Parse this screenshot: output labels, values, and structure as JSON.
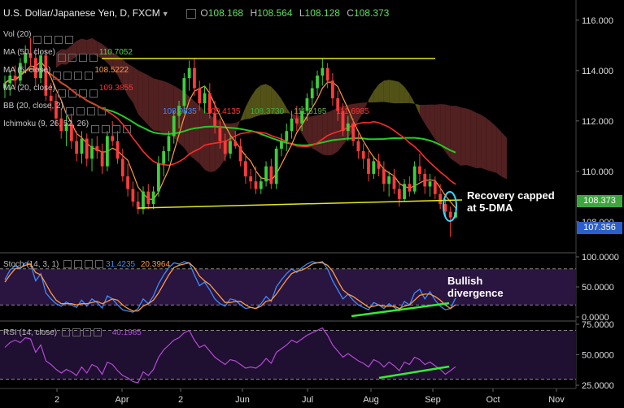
{
  "header": {
    "title": "U.S. Dollar/Japanese Yen, D, FXCM",
    "ohlc": [
      {
        "k": "O",
        "v": "108.168"
      },
      {
        "k": "H",
        "v": "108.564"
      },
      {
        "k": "L",
        "v": "108.128"
      },
      {
        "k": "C",
        "v": "108.373"
      }
    ]
  },
  "indicators": [
    {
      "label": "Vol (20)",
      "value": "",
      "color": "#bbbbbb"
    },
    {
      "label": "MA (50, close)",
      "value": "110.7052",
      "color": "#44dd44"
    },
    {
      "label": "MA (5, close)",
      "value": "108.5222",
      "color": "#ff9a40"
    },
    {
      "label": "MA (20, close)",
      "value": "109.3855",
      "color": "#ff3333"
    },
    {
      "label": "BB (20, close, 2)",
      "value": "",
      "color": "#bbbbbb"
    },
    {
      "label": "Ichimoku (9, 26, 52, 26)",
      "value": "",
      "color": "#bbbbbb"
    }
  ],
  "ichimoku_values": [
    {
      "v": "108.9835",
      "color": "#3a8cff"
    },
    {
      "v": "109.4135",
      "color": "#ff3333"
    },
    {
      "v": "108.3730",
      "color": "#44aa44"
    },
    {
      "v": "111.5195",
      "color": "#66aa44"
    },
    {
      "v": "111.6985",
      "color": "#ff3333"
    }
  ],
  "annotations": {
    "recovery": [
      "Recovery capped",
      "at 5-DMA"
    ],
    "bullish": [
      "Bullish",
      "divergence"
    ]
  },
  "price_badges": {
    "current": "108.373",
    "lower": "107.356"
  },
  "stoch": {
    "label": "Stoch (14, 3, 1)",
    "k": "31.4235",
    "d": "20.3964"
  },
  "rsi": {
    "label": "RSI (14, close)",
    "value": "40.1985"
  },
  "colors": {
    "bull": "#3ccf3c",
    "bear": "#ff3b3b",
    "ma50": "#22cc22",
    "ma20": "#ff2a2a",
    "ma5": "#ff9a40",
    "cloud_bull": "#5b5b1a",
    "cloud_bear": "#5a2424",
    "trendline": "#e6e61e",
    "stoch_k": "#3a8cff",
    "stoch_d": "#ff9a40",
    "rsi": "#b44ad8",
    "highlight": "#3fd8ff",
    "divergence": "#33ee33"
  },
  "chart_data": [
    {
      "type": "candlestick",
      "title": "U.S. Dollar/Japanese Yen, D, FXCM",
      "x_tick_labels": [
        "2",
        "Apr",
        "2",
        "Jun",
        "Jul",
        "Aug",
        "Sep",
        "Oct",
        "Nov"
      ],
      "y_tick_labels": [
        "116.000",
        "114.000",
        "112.000",
        "110.000",
        "108.000"
      ],
      "ylim": [
        106.8,
        116.8
      ],
      "candles": [
        [
          113.3,
          113.8,
          112.9,
          113.5
        ],
        [
          113.5,
          114.0,
          113.0,
          113.8
        ],
        [
          113.8,
          114.2,
          113.3,
          113.6
        ],
        [
          113.6,
          114.5,
          113.4,
          114.3
        ],
        [
          114.3,
          115.0,
          113.9,
          114.7
        ],
        [
          114.7,
          115.3,
          114.2,
          114.5
        ],
        [
          114.5,
          114.9,
          113.4,
          113.7
        ],
        [
          113.7,
          114.8,
          113.5,
          114.6
        ],
        [
          114.6,
          114.8,
          112.8,
          113.0
        ],
        [
          113.0,
          113.5,
          112.4,
          112.8
        ],
        [
          112.8,
          113.1,
          111.8,
          112.1
        ],
        [
          112.1,
          112.5,
          111.3,
          111.6
        ],
        [
          111.6,
          112.2,
          111.0,
          111.9
        ],
        [
          111.9,
          112.3,
          110.9,
          111.2
        ],
        [
          111.2,
          111.6,
          110.4,
          110.7
        ],
        [
          110.7,
          111.6,
          110.3,
          111.3
        ],
        [
          111.3,
          111.5,
          110.2,
          110.5
        ],
        [
          110.5,
          111.3,
          110.0,
          111.0
        ],
        [
          111.0,
          111.4,
          110.5,
          110.8
        ],
        [
          110.8,
          111.1,
          109.9,
          110.2
        ],
        [
          110.2,
          111.6,
          110.0,
          111.4
        ],
        [
          111.4,
          112.0,
          111.0,
          111.2
        ],
        [
          111.2,
          111.6,
          110.3,
          110.5
        ],
        [
          110.5,
          110.9,
          109.6,
          109.8
        ],
        [
          109.8,
          110.3,
          109.0,
          109.3
        ],
        [
          109.3,
          109.6,
          108.6,
          108.8
        ],
        [
          108.8,
          109.2,
          108.3,
          108.5
        ],
        [
          108.5,
          109.4,
          108.3,
          109.2
        ],
        [
          109.2,
          109.5,
          108.5,
          108.7
        ],
        [
          108.7,
          109.4,
          108.5,
          109.2
        ],
        [
          109.2,
          110.6,
          109.0,
          110.3
        ],
        [
          110.3,
          111.0,
          109.8,
          110.8
        ],
        [
          110.8,
          111.6,
          110.4,
          111.4
        ],
        [
          111.4,
          112.4,
          111.1,
          112.2
        ],
        [
          112.2,
          112.8,
          111.7,
          112.6
        ],
        [
          112.6,
          113.9,
          112.3,
          113.7
        ],
        [
          113.7,
          114.4,
          113.2,
          114.1
        ],
        [
          114.1,
          114.5,
          113.0,
          113.3
        ],
        [
          113.3,
          113.6,
          112.4,
          112.7
        ],
        [
          112.7,
          113.4,
          112.3,
          113.1
        ],
        [
          113.1,
          113.5,
          112.1,
          112.3
        ],
        [
          112.3,
          112.8,
          111.5,
          111.8
        ],
        [
          111.8,
          112.1,
          110.9,
          111.2
        ],
        [
          111.2,
          111.5,
          110.4,
          110.7
        ],
        [
          110.7,
          111.4,
          110.5,
          111.2
        ],
        [
          111.2,
          111.6,
          110.9,
          111.0
        ],
        [
          111.0,
          111.3,
          110.2,
          110.4
        ],
        [
          110.4,
          110.7,
          109.5,
          109.8
        ],
        [
          109.8,
          110.1,
          109.3,
          109.6
        ],
        [
          109.6,
          110.2,
          109.1,
          109.3
        ],
        [
          109.3,
          109.8,
          109.1,
          109.6
        ],
        [
          109.6,
          110.4,
          109.4,
          110.2
        ],
        [
          110.2,
          110.5,
          109.3,
          109.5
        ],
        [
          109.5,
          111.0,
          109.3,
          110.9
        ],
        [
          110.9,
          111.5,
          110.6,
          111.2
        ],
        [
          111.2,
          111.9,
          110.8,
          111.6
        ],
        [
          111.6,
          112.4,
          111.3,
          112.1
        ],
        [
          112.1,
          112.6,
          111.6,
          111.9
        ],
        [
          111.9,
          112.6,
          111.6,
          112.4
        ],
        [
          112.4,
          113.1,
          112.0,
          112.9
        ],
        [
          112.9,
          113.6,
          112.6,
          113.3
        ],
        [
          113.3,
          114.0,
          113.0,
          113.8
        ],
        [
          113.8,
          114.5,
          113.4,
          114.1
        ],
        [
          114.1,
          114.3,
          113.3,
          113.6
        ],
        [
          113.6,
          113.9,
          112.6,
          112.9
        ],
        [
          112.9,
          113.2,
          112.0,
          112.4
        ],
        [
          112.4,
          112.7,
          111.4,
          111.6
        ],
        [
          111.6,
          112.2,
          111.2,
          111.9
        ],
        [
          111.9,
          112.1,
          111.0,
          111.2
        ],
        [
          111.2,
          111.5,
          110.5,
          110.8
        ],
        [
          110.8,
          111.1,
          110.1,
          110.5
        ],
        [
          110.5,
          110.8,
          109.6,
          109.9
        ],
        [
          109.9,
          110.6,
          109.7,
          110.4
        ],
        [
          110.4,
          110.7,
          109.8,
          110.1
        ],
        [
          110.1,
          110.4,
          109.2,
          109.5
        ],
        [
          109.5,
          110.0,
          109.0,
          109.8
        ],
        [
          109.8,
          110.1,
          109.1,
          109.3
        ],
        [
          109.3,
          109.6,
          108.6,
          108.9
        ],
        [
          108.9,
          109.7,
          108.8,
          109.5
        ],
        [
          109.5,
          109.8,
          109.0,
          109.2
        ],
        [
          109.2,
          110.4,
          109.1,
          110.2
        ],
        [
          110.2,
          110.7,
          109.6,
          109.9
        ],
        [
          109.9,
          110.1,
          109.1,
          109.4
        ],
        [
          109.4,
          109.9,
          109.0,
          109.6
        ],
        [
          109.6,
          109.8,
          108.9,
          109.1
        ],
        [
          109.1,
          109.5,
          108.5,
          108.7
        ],
        [
          108.7,
          108.9,
          108.2,
          108.4
        ],
        [
          108.4,
          108.6,
          107.4,
          108.168
        ],
        [
          108.168,
          108.564,
          108.128,
          108.373
        ]
      ]
    },
    {
      "type": "line",
      "title": "Stoch (14, 3, 1)",
      "y_tick_labels": [
        "100.0000",
        "50.0000",
        "0.0000"
      ],
      "ylim": [
        0,
        100
      ],
      "series": [
        {
          "name": "Stoch (14, 3, 1)",
          "values": [
            62,
            78,
            85,
            80,
            90,
            88,
            60,
            72,
            40,
            30,
            22,
            18,
            25,
            20,
            16,
            28,
            18,
            30,
            24,
            15,
            35,
            30,
            20,
            12,
            10,
            8,
            14,
            30,
            22,
            35,
            55,
            70,
            82,
            90,
            88,
            92,
            90,
            70,
            52,
            58,
            45,
            30,
            22,
            18,
            30,
            28,
            20,
            14,
            16,
            14,
            22,
            34,
            26,
            50,
            62,
            72,
            80,
            74,
            82,
            88,
            92,
            90,
            92,
            80,
            60,
            45,
            30,
            38,
            28,
            20,
            16,
            12,
            24,
            20,
            14,
            22,
            16,
            10,
            26,
            20,
            40,
            46,
            30,
            42,
            28,
            18,
            12,
            14,
            31.4235
          ]
        },
        {
          "name": "",
          "values": [
            58,
            70,
            80,
            82,
            86,
            88,
            74,
            70,
            55,
            40,
            28,
            22,
            22,
            22,
            20,
            22,
            22,
            24,
            26,
            22,
            26,
            30,
            28,
            20,
            14,
            10,
            10,
            18,
            22,
            28,
            40,
            55,
            70,
            82,
            86,
            88,
            90,
            82,
            68,
            60,
            54,
            44,
            34,
            24,
            24,
            26,
            26,
            20,
            16,
            14,
            18,
            26,
            28,
            38,
            50,
            62,
            72,
            76,
            78,
            82,
            88,
            90,
            90,
            86,
            76,
            60,
            45,
            38,
            34,
            28,
            22,
            16,
            18,
            20,
            18,
            18,
            18,
            14,
            18,
            20,
            28,
            36,
            38,
            38,
            34,
            28,
            20,
            14,
            20.3964
          ]
        }
      ]
    },
    {
      "type": "line",
      "title": "RSI (14, close)",
      "y_tick_labels": [
        "75.0000",
        "50.0000",
        "25.0000"
      ],
      "ylim": [
        25,
        75
      ],
      "series": [
        {
          "name": "RSI (14, close)",
          "values": [
            56,
            60,
            62,
            60,
            64,
            63,
            52,
            58,
            45,
            42,
            38,
            35,
            38,
            36,
            33,
            40,
            35,
            42,
            40,
            34,
            44,
            42,
            37,
            33,
            31,
            28,
            27,
            36,
            33,
            38,
            48,
            54,
            58,
            62,
            64,
            68,
            70,
            62,
            56,
            58,
            53,
            48,
            45,
            42,
            46,
            45,
            42,
            39,
            40,
            39,
            42,
            47,
            43,
            52,
            55,
            58,
            62,
            60,
            63,
            66,
            68,
            70,
            72,
            66,
            58,
            53,
            48,
            51,
            48,
            45,
            43,
            40,
            46,
            44,
            40,
            44,
            41,
            37,
            44,
            42,
            48,
            46,
            42,
            44,
            41,
            38,
            34,
            37,
            40.1985
          ]
        }
      ]
    }
  ]
}
